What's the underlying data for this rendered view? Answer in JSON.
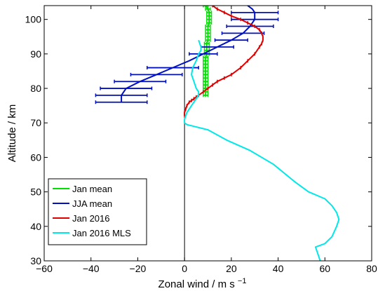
{
  "chart_data": {
    "type": "line",
    "title": "",
    "xlabel": "Zonal wind / m s",
    "xlabel_sup": "−1",
    "ylabel": "Altitude / km",
    "xlim": [
      -60,
      80
    ],
    "ylim": [
      30,
      104
    ],
    "x_ticks": [
      -60,
      -40,
      -20,
      0,
      20,
      40,
      60,
      80
    ],
    "y_ticks": [
      30,
      40,
      50,
      60,
      70,
      80,
      90,
      100
    ],
    "x_tick_labels": [
      "−60",
      "−40",
      "−20",
      "0",
      "20",
      "40",
      "60",
      "80"
    ],
    "y_tick_labels": [
      "30",
      "40",
      "50",
      "60",
      "70",
      "80",
      "90",
      "100"
    ],
    "grid": false,
    "legend_position": "lower-left",
    "zero_line": 0,
    "series": [
      {
        "name": "Jan mean",
        "color": "#00e000",
        "x": [
          9,
          9,
          9,
          9,
          9,
          9,
          9,
          9,
          9,
          9,
          9,
          9,
          9.5,
          9.5,
          9.5,
          9.5,
          10,
          10,
          10,
          10,
          10,
          10.5,
          10.5,
          10.5,
          10.5,
          10,
          9,
          7
        ],
        "y": [
          78,
          79,
          80,
          81,
          82,
          83,
          84,
          85,
          86,
          87,
          88,
          89,
          90,
          91,
          92,
          93,
          94,
          95,
          96,
          97,
          98,
          99,
          100,
          101,
          102,
          103,
          104,
          104.5
        ],
        "err": [
          1,
          1,
          1,
          1,
          1,
          1,
          1,
          1,
          1,
          1,
          1,
          1,
          1,
          1,
          1,
          1,
          1,
          1,
          1,
          1,
          1,
          1,
          1,
          1,
          1,
          1,
          1,
          1
        ]
      },
      {
        "name": "JJA mean",
        "color": "#0010c0",
        "x": [
          -27,
          -27,
          -25,
          -19,
          -12,
          -5,
          2,
          8,
          14,
          20,
          25,
          28,
          30,
          30,
          29,
          27,
          26
        ],
        "y": [
          76,
          78,
          80,
          82,
          84,
          86,
          88,
          90,
          92,
          94,
          96,
          98,
          100,
          102,
          103,
          104,
          105
        ],
        "err_points": [
          {
            "y": 76,
            "x": -27,
            "err": 11
          },
          {
            "y": 78,
            "x": -27,
            "err": 11
          },
          {
            "y": 80,
            "x": -25,
            "err": 11
          },
          {
            "y": 82,
            "x": -19,
            "err": 11
          },
          {
            "y": 84,
            "x": -12,
            "err": 11
          },
          {
            "y": 86,
            "x": -5,
            "err": 11
          },
          {
            "y": 90,
            "x": 8,
            "err": 6
          },
          {
            "y": 92,
            "x": 14,
            "err": 7
          },
          {
            "y": 94,
            "x": 20,
            "err": 7
          },
          {
            "y": 96,
            "x": 25,
            "err": 9
          },
          {
            "y": 98,
            "x": 28,
            "err": 10
          },
          {
            "y": 100,
            "x": 30,
            "err": 10
          },
          {
            "y": 102,
            "x": 30,
            "err": 10
          }
        ]
      },
      {
        "name": "Jan 2016",
        "color": "#e00000",
        "x": [
          0,
          0,
          0.5,
          1,
          2,
          3,
          4,
          5,
          6,
          8,
          10,
          12,
          14,
          17,
          20,
          24,
          27,
          30,
          32,
          33,
          33.5,
          33.5,
          33,
          32,
          30,
          27,
          24,
          20,
          17,
          14,
          12
        ],
        "y": [
          72,
          73,
          74,
          75,
          76,
          76.5,
          77,
          77.5,
          78,
          79,
          80,
          81,
          82,
          83,
          84,
          86,
          88,
          90,
          92,
          93,
          94,
          95,
          96,
          97,
          98,
          99,
          100,
          101,
          102,
          103,
          104
        ],
        "marker_interval": 1
      },
      {
        "name": "Jan 2016 MLS",
        "color": "#00e8e8",
        "x": [
          58,
          57,
          56,
          60,
          63,
          65,
          66,
          65,
          63,
          60,
          53,
          47,
          38,
          28,
          18,
          10,
          4,
          1,
          0,
          0,
          0.5,
          1,
          2,
          3,
          4,
          5,
          6,
          6,
          5,
          4,
          3,
          3.5,
          5,
          6,
          7,
          7,
          6.5,
          6
        ],
        "y": [
          30,
          32,
          34,
          35,
          37,
          40,
          42,
          44,
          46,
          48,
          50,
          53,
          58,
          62,
          65,
          68,
          69,
          69.5,
          70,
          71,
          72,
          73,
          74,
          75,
          76,
          77,
          78,
          79,
          80,
          82,
          84,
          86,
          88,
          90,
          91,
          92,
          93,
          94
        ]
      }
    ]
  }
}
